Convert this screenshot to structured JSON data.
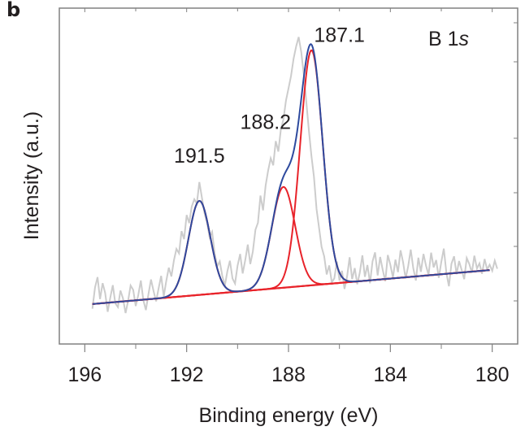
{
  "panel_label": "b",
  "chart_data": {
    "type": "line",
    "title": "",
    "annotation": {
      "element": "B 1",
      "orbital": "s"
    },
    "xlabel": "Binding energy (eV)",
    "ylabel": "Intensity (a.u.)",
    "x_reversed": true,
    "xlim": [
      197.0,
      179.0
    ],
    "ylim": [
      0,
      100
    ],
    "x_ticks": [
      196,
      192,
      188,
      184,
      180
    ],
    "x_tick_labels": [
      "196",
      "192",
      "188",
      "184",
      "180"
    ],
    "x_minor_ticks": [
      194,
      190,
      186,
      182
    ],
    "y_tick_labels": [],
    "grid": false,
    "legend": "none",
    "colors": {
      "raw": "#cccccc",
      "envelope": "#2e4a9e",
      "components": "#e8232a",
      "background": "#e8232a",
      "axis": "#808080",
      "text": "#231f20"
    },
    "background_line": {
      "x": [
        195.7,
        180.1
      ],
      "y": [
        11.9,
        22.0
      ]
    },
    "components": [
      {
        "name": "191.5",
        "center": 191.5,
        "amplitude": 28.0,
        "sigma": 0.43
      },
      {
        "name": "188.2",
        "center": 188.2,
        "amplitude": 30.0,
        "sigma": 0.46
      },
      {
        "name": "187.1",
        "center": 187.1,
        "amplitude": 70.0,
        "sigma": 0.44
      }
    ],
    "peak_labels": [
      {
        "text": "191.5",
        "x": 191.5,
        "y": 54
      },
      {
        "text": "188.2",
        "x": 188.9,
        "y": 64
      },
      {
        "text": "187.1",
        "x": 186.0,
        "y": 90
      }
    ],
    "raw_data": {
      "x_start": 195.7,
      "x_step": 0.1,
      "y": [
        10.5,
        16.8,
        19.9,
        13.4,
        18.1,
        15.2,
        9.6,
        13.8,
        17.5,
        12.1,
        11.0,
        15.9,
        13.6,
        9.2,
        12.8,
        17.4,
        16.1,
        11.3,
        14.5,
        18.9,
        13.0,
        10.1,
        14.9,
        19.2,
        15.8,
        12.7,
        16.6,
        20.3,
        14.2,
        18.8,
        22.7,
        20.1,
        24.9,
        28.3,
        27.0,
        33.6,
        31.2,
        38.4,
        36.0,
        40.9,
        43.1,
        41.8,
        48.2,
        43.5,
        39.0,
        36.2,
        31.8,
        33.4,
        27.0,
        23.1,
        24.6,
        20.3,
        17.4,
        21.7,
        24.8,
        19.5,
        18.0,
        23.3,
        26.8,
        21.0,
        24.9,
        29.6,
        23.8,
        27.5,
        34.0,
        36.1,
        44.2,
        39.8,
        47.1,
        51.6,
        55.3,
        53.2,
        60.4,
        57.3,
        63.9,
        66.8,
        72.5,
        76.1,
        79.8,
        85.0,
        88.6,
        91.4,
        86.9,
        80.3,
        72.1,
        63.5,
        56.0,
        49.8,
        40.2,
        34.6,
        28.9,
        26.1,
        20.7,
        23.4,
        18.3,
        19.6,
        24.5,
        18.9,
        21.8,
        16.4,
        20.1,
        25.8,
        19.3,
        22.6,
        17.8,
        21.2,
        26.4,
        20.0,
        23.5,
        18.1,
        24.6,
        27.3,
        20.4,
        25.9,
        22.1,
        18.7,
        26.5,
        23.6,
        19.8,
        25.1,
        21.4,
        27.9,
        24.3,
        19.5,
        23.2,
        28.1,
        22.6,
        18.9,
        25.7,
        21.5,
        26.8,
        23.3,
        20.6,
        27.2,
        22.8,
        25.0,
        19.7,
        24.4,
        28.4,
        21.1,
        17.2,
        23.9,
        26.1,
        20.8,
        24.7,
        22.0,
        19.3,
        25.6,
        23.8,
        21.2,
        26.3,
        22.5,
        24.0,
        20.9,
        25.3,
        22.2,
        23.6,
        21.8,
        24.8,
        22.4
      ]
    }
  }
}
